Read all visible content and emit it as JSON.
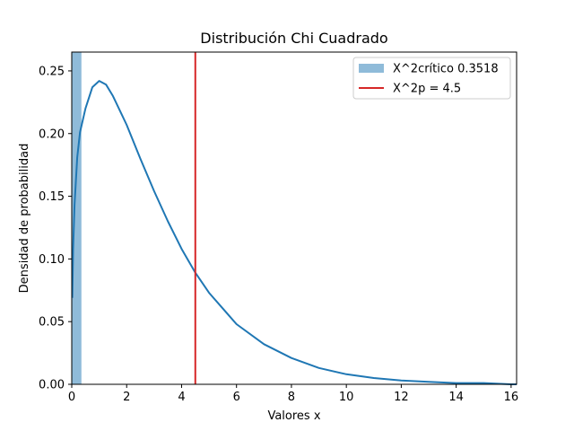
{
  "chart_data": {
    "type": "line",
    "title": "Distribución Chi Cuadrado",
    "xlabel": "Valores x",
    "ylabel": "Densidad de probabilidad",
    "xlim": [
      0,
      16.2
    ],
    "ylim": [
      0,
      0.265
    ],
    "x_ticks": [
      0,
      2,
      4,
      6,
      8,
      10,
      12,
      14,
      16
    ],
    "y_ticks": [
      0.0,
      0.05,
      0.1,
      0.15,
      0.2,
      0.25
    ],
    "x_tick_labels": [
      "0",
      "2",
      "4",
      "6",
      "8",
      "10",
      "12",
      "14",
      "16"
    ],
    "y_tick_labels": [
      "0.00",
      "0.05",
      "0.10",
      "0.15",
      "0.20",
      "0.25"
    ],
    "grid": false,
    "legend_position": "top-right",
    "series": [
      {
        "kind": "density-curve",
        "color": "#1f77b4",
        "x": [
          0.02,
          0.05,
          0.1,
          0.2,
          0.3,
          0.5,
          0.75,
          1.0,
          1.25,
          1.5,
          2.0,
          2.5,
          3.0,
          3.5,
          4.0,
          4.5,
          5.0,
          6.0,
          7.0,
          8.0,
          9.0,
          10.0,
          11.0,
          12.0,
          13.0,
          14.0,
          15.0,
          16.0,
          16.2
        ],
        "y": [
          0.069,
          0.107,
          0.143,
          0.181,
          0.201,
          0.22,
          0.237,
          0.242,
          0.239,
          0.23,
          0.207,
          0.18,
          0.154,
          0.13,
          0.108,
          0.089,
          0.073,
          0.048,
          0.032,
          0.021,
          0.013,
          0.008,
          0.005,
          0.003,
          0.002,
          0.001,
          0.001,
          0.0,
          0.0
        ]
      },
      {
        "kind": "shaded-area",
        "name": "X^2crítico 0.3518",
        "color": "#1f77b4",
        "opacity": 0.5,
        "x_range": [
          0,
          0.3518
        ]
      },
      {
        "kind": "vertical-line",
        "name": "X^2p = 4.5",
        "color": "#d62728",
        "x": 4.5
      }
    ],
    "legend": [
      {
        "label": "X^2crítico 0.3518",
        "marker": "patch",
        "color": "#1f77b4",
        "opacity": 0.5
      },
      {
        "label": "X^2p = 4.5",
        "marker": "line",
        "color": "#d62728"
      }
    ]
  }
}
